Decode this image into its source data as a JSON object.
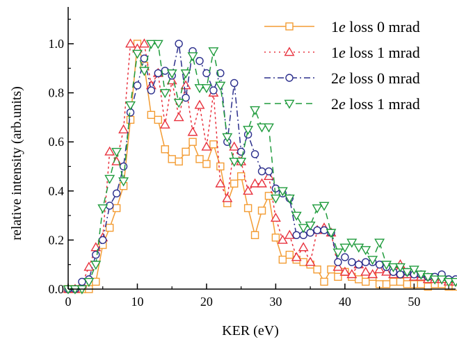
{
  "chart_data": {
    "type": "line",
    "title": "",
    "xlabel": "KER (eV)",
    "ylabel": "relative intensity (arb.units)",
    "xlim": [
      0,
      56
    ],
    "ylim": [
      0,
      1.15
    ],
    "xticks": [
      "0",
      "10",
      "20",
      "30",
      "40",
      "50"
    ],
    "yticks": [
      "0.0",
      "0.2",
      "0.4",
      "0.6",
      "0.8",
      "1.0"
    ],
    "grid": false,
    "legend_position": "top-right",
    "series": [
      {
        "name": "1e loss 0 mrad",
        "name_parts": {
          "pre": "1",
          "italic": "e",
          "post": " loss 0 mrad"
        },
        "color": "#f39c33",
        "marker": "square",
        "dash": "solid",
        "points": [
          [
            0,
            0.0
          ],
          [
            1,
            0.0
          ],
          [
            2,
            0.0
          ],
          [
            3,
            0.0
          ],
          [
            4,
            0.03
          ],
          [
            5,
            0.18
          ],
          [
            6,
            0.25
          ],
          [
            7,
            0.33
          ],
          [
            8,
            0.42
          ],
          [
            9,
            0.69
          ],
          [
            10,
            1.0
          ],
          [
            11,
            0.91
          ],
          [
            12,
            0.71
          ],
          [
            13,
            0.69
          ],
          [
            14,
            0.57
          ],
          [
            15,
            0.53
          ],
          [
            16,
            0.52
          ],
          [
            17,
            0.56
          ],
          [
            18,
            0.6
          ],
          [
            19,
            0.53
          ],
          [
            20,
            0.51
          ],
          [
            21,
            0.59
          ],
          [
            22,
            0.5
          ],
          [
            23,
            0.35
          ],
          [
            24,
            0.43
          ],
          [
            25,
            0.46
          ],
          [
            26,
            0.33
          ],
          [
            27,
            0.22
          ],
          [
            28,
            0.32
          ],
          [
            29,
            0.38
          ],
          [
            30,
            0.21
          ],
          [
            31,
            0.12
          ],
          [
            32,
            0.14
          ],
          [
            33,
            0.12
          ],
          [
            34,
            0.11
          ],
          [
            35,
            0.1
          ],
          [
            36,
            0.08
          ],
          [
            37,
            0.03
          ],
          [
            38,
            0.08
          ],
          [
            39,
            0.05
          ],
          [
            40,
            0.07
          ],
          [
            41,
            0.05
          ],
          [
            42,
            0.04
          ],
          [
            43,
            0.03
          ],
          [
            44,
            0.05
          ],
          [
            45,
            0.02
          ],
          [
            46,
            0.02
          ],
          [
            47,
            0.03
          ],
          [
            48,
            0.03
          ],
          [
            49,
            0.02
          ],
          [
            50,
            0.02
          ],
          [
            51,
            0.02
          ],
          [
            52,
            0.01
          ],
          [
            53,
            0.02
          ],
          [
            54,
            0.02
          ],
          [
            55,
            0.01
          ],
          [
            56,
            0.01
          ]
        ]
      },
      {
        "name": "1e loss 1 mrad",
        "name_parts": {
          "pre": "1",
          "italic": "e",
          "post": " loss 1 mrad"
        },
        "color": "#e8313d",
        "marker": "triangle-up",
        "dash": "dotted",
        "points": [
          [
            0,
            0.0
          ],
          [
            1,
            0.0
          ],
          [
            2,
            0.02
          ],
          [
            3,
            0.09
          ],
          [
            4,
            0.17
          ],
          [
            5,
            0.21
          ],
          [
            6,
            0.56
          ],
          [
            7,
            0.52
          ],
          [
            8,
            0.65
          ],
          [
            9,
            1.0
          ],
          [
            10,
            0.98
          ],
          [
            11,
            1.0
          ],
          [
            12,
            0.83
          ],
          [
            13,
            0.88
          ],
          [
            14,
            0.67
          ],
          [
            15,
            0.85
          ],
          [
            16,
            0.7
          ],
          [
            17,
            0.83
          ],
          [
            18,
            0.64
          ],
          [
            19,
            0.75
          ],
          [
            20,
            0.58
          ],
          [
            21,
            0.8
          ],
          [
            22,
            0.43
          ],
          [
            23,
            0.37
          ],
          [
            24,
            0.58
          ],
          [
            25,
            0.52
          ],
          [
            26,
            0.4
          ],
          [
            27,
            0.43
          ],
          [
            28,
            0.43
          ],
          [
            29,
            0.46
          ],
          [
            30,
            0.29
          ],
          [
            31,
            0.2
          ],
          [
            32,
            0.22
          ],
          [
            33,
            0.13
          ],
          [
            34,
            0.17
          ],
          [
            35,
            0.11
          ],
          [
            36,
            0.24
          ],
          [
            37,
            0.25
          ],
          [
            38,
            0.23
          ],
          [
            39,
            0.09
          ],
          [
            40,
            0.07
          ],
          [
            41,
            0.06
          ],
          [
            42,
            0.1
          ],
          [
            43,
            0.07
          ],
          [
            44,
            0.06
          ],
          [
            45,
            0.08
          ],
          [
            46,
            0.07
          ],
          [
            47,
            0.06
          ],
          [
            48,
            0.1
          ],
          [
            49,
            0.06
          ],
          [
            50,
            0.05
          ],
          [
            51,
            0.05
          ],
          [
            52,
            0.04
          ],
          [
            53,
            0.04
          ],
          [
            54,
            0.04
          ],
          [
            55,
            0.03
          ],
          [
            56,
            0.03
          ]
        ]
      },
      {
        "name": "2e loss 0 mrad",
        "name_parts": {
          "pre": "2",
          "italic": "e",
          "post": " loss 0 mrad"
        },
        "color": "#2b2e8c",
        "marker": "circle",
        "dash": "dashdot",
        "points": [
          [
            0,
            0.0
          ],
          [
            1,
            0.0
          ],
          [
            2,
            0.03
          ],
          [
            3,
            0.04
          ],
          [
            4,
            0.14
          ],
          [
            5,
            0.2
          ],
          [
            6,
            0.34
          ],
          [
            7,
            0.39
          ],
          [
            8,
            0.5
          ],
          [
            9,
            0.72
          ],
          [
            10,
            0.83
          ],
          [
            11,
            0.94
          ],
          [
            12,
            0.81
          ],
          [
            13,
            0.88
          ],
          [
            14,
            0.89
          ],
          [
            15,
            0.87
          ],
          [
            16,
            1.0
          ],
          [
            17,
            0.78
          ],
          [
            18,
            0.97
          ],
          [
            19,
            0.93
          ],
          [
            20,
            0.88
          ],
          [
            21,
            0.81
          ],
          [
            22,
            0.88
          ],
          [
            23,
            0.6
          ],
          [
            24,
            0.84
          ],
          [
            25,
            0.56
          ],
          [
            26,
            0.63
          ],
          [
            27,
            0.55
          ],
          [
            28,
            0.48
          ],
          [
            29,
            0.48
          ],
          [
            30,
            0.41
          ],
          [
            31,
            0.39
          ],
          [
            32,
            0.37
          ],
          [
            33,
            0.22
          ],
          [
            34,
            0.22
          ],
          [
            35,
            0.23
          ],
          [
            36,
            0.24
          ],
          [
            37,
            0.24
          ],
          [
            38,
            0.23
          ],
          [
            39,
            0.11
          ],
          [
            40,
            0.13
          ],
          [
            41,
            0.11
          ],
          [
            42,
            0.1
          ],
          [
            43,
            0.11
          ],
          [
            44,
            0.11
          ],
          [
            45,
            0.1
          ],
          [
            46,
            0.09
          ],
          [
            47,
            0.07
          ],
          [
            48,
            0.06
          ],
          [
            49,
            0.07
          ],
          [
            50,
            0.06
          ],
          [
            51,
            0.06
          ],
          [
            52,
            0.05
          ],
          [
            53,
            0.05
          ],
          [
            54,
            0.06
          ],
          [
            55,
            0.04
          ],
          [
            56,
            0.04
          ]
        ]
      },
      {
        "name": "2e loss 1 mrad",
        "name_parts": {
          "pre": "2",
          "italic": "e",
          "post": " loss 1 mrad"
        },
        "color": "#1f9b3c",
        "marker": "triangle-down",
        "dash": "dashed",
        "points": [
          [
            0,
            0.0
          ],
          [
            1,
            0.0
          ],
          [
            2,
            0.0
          ],
          [
            3,
            0.03
          ],
          [
            4,
            0.1
          ],
          [
            5,
            0.33
          ],
          [
            6,
            0.45
          ],
          [
            7,
            0.56
          ],
          [
            8,
            0.44
          ],
          [
            9,
            0.75
          ],
          [
            10,
            0.96
          ],
          [
            11,
            0.89
          ],
          [
            12,
            1.0
          ],
          [
            13,
            1.0
          ],
          [
            14,
            0.8
          ],
          [
            15,
            0.88
          ],
          [
            16,
            0.76
          ],
          [
            17,
            0.88
          ],
          [
            18,
            0.95
          ],
          [
            19,
            0.82
          ],
          [
            20,
            0.82
          ],
          [
            21,
            0.97
          ],
          [
            22,
            0.83
          ],
          [
            23,
            0.62
          ],
          [
            24,
            0.52
          ],
          [
            25,
            0.52
          ],
          [
            26,
            0.65
          ],
          [
            27,
            0.73
          ],
          [
            28,
            0.66
          ],
          [
            29,
            0.66
          ],
          [
            30,
            0.37
          ],
          [
            31,
            0.4
          ],
          [
            32,
            0.37
          ],
          [
            33,
            0.3
          ],
          [
            34,
            0.25
          ],
          [
            35,
            0.26
          ],
          [
            36,
            0.33
          ],
          [
            37,
            0.34
          ],
          [
            38,
            0.23
          ],
          [
            39,
            0.15
          ],
          [
            40,
            0.17
          ],
          [
            41,
            0.19
          ],
          [
            42,
            0.17
          ],
          [
            43,
            0.16
          ],
          [
            44,
            0.12
          ],
          [
            45,
            0.19
          ],
          [
            46,
            0.1
          ],
          [
            47,
            0.09
          ],
          [
            48,
            0.09
          ],
          [
            49,
            0.07
          ],
          [
            50,
            0.08
          ],
          [
            51,
            0.06
          ],
          [
            52,
            0.05
          ],
          [
            53,
            0.04
          ],
          [
            54,
            0.04
          ],
          [
            55,
            0.03
          ],
          [
            56,
            0.03
          ]
        ]
      }
    ]
  }
}
